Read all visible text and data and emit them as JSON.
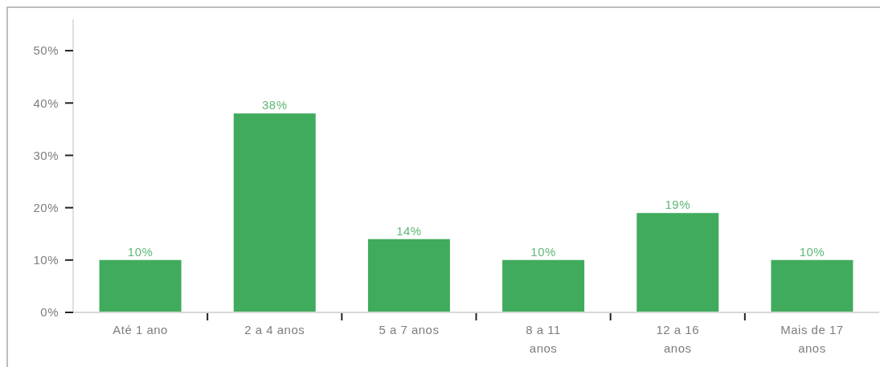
{
  "chart_data": {
    "type": "bar",
    "categories": [
      "Até 1 ano",
      "2 a 4 anos",
      "5 a 7 anos",
      "8 a 11 anos",
      "12 a 16 anos",
      "Mais de 17 anos"
    ],
    "values": [
      10,
      38,
      14,
      10,
      19,
      10
    ],
    "color": "#41ab5d",
    "value_labels": [
      "10%",
      "38%",
      "14%",
      "10%",
      "19%",
      "10%"
    ],
    "ylim": [
      0,
      56
    ],
    "yticks": [
      {
        "value": 0,
        "label": "0%"
      },
      {
        "value": 10,
        "label": "10%"
      },
      {
        "value": 20,
        "label": "20%"
      },
      {
        "value": 30,
        "label": "30%"
      },
      {
        "value": 40,
        "label": "40%"
      },
      {
        "value": 50,
        "label": "50%"
      }
    ]
  }
}
